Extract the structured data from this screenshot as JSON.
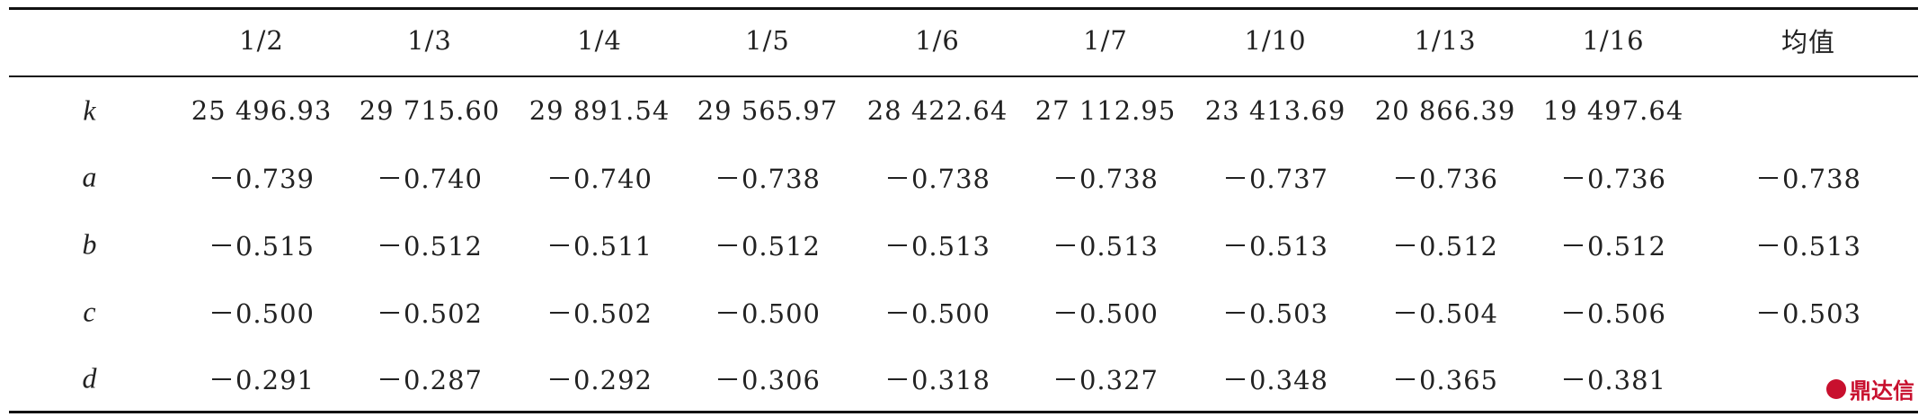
{
  "table": {
    "header": [
      "1/2",
      "1/3",
      "1/4",
      "1/5",
      "1/6",
      "1/7",
      "1/10",
      "1/13",
      "1/16",
      "均值"
    ],
    "rows": [
      {
        "label": "k",
        "values": [
          "25 496.93",
          "29 715.60",
          "29 891.54",
          "29 565.97",
          "28 422.64",
          "27 112.95",
          "23 413.69",
          "20 866.39",
          "19 497.64"
        ]
      },
      {
        "label": "a",
        "values": [
          "－0.739",
          "－0.740",
          "－0.740",
          "－0.738",
          "－0.738",
          "－0.738",
          "－0.737",
          "－0.736",
          "－0.736",
          "－0.738"
        ]
      },
      {
        "label": "b",
        "values": [
          "－0.515",
          "－0.512",
          "－0.511",
          "－0.512",
          "－0.513",
          "－0.513",
          "－0.513",
          "－0.512",
          "－0.512",
          "－0.513"
        ]
      },
      {
        "label": "c",
        "values": [
          "－0.500",
          "－0.502",
          "－0.502",
          "－0.500",
          "－0.500",
          "－0.500",
          "－0.503",
          "－0.504",
          "－0.506",
          "－0.503"
        ]
      },
      {
        "label": "d",
        "values": [
          "－0.291",
          "－0.287",
          "－0.292",
          "－0.306",
          "－0.318",
          "－0.327",
          "－0.348",
          "－0.365",
          "－0.381"
        ]
      }
    ]
  },
  "watermark": "鼎达信"
}
